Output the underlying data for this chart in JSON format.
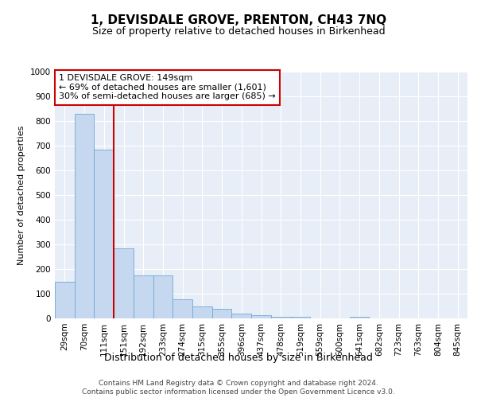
{
  "title": "1, DEVISDALE GROVE, PRENTON, CH43 7NQ",
  "subtitle": "Size of property relative to detached houses in Birkenhead",
  "xlabel": "Distribution of detached houses by size in Birkenhead",
  "ylabel": "Number of detached properties",
  "categories": [
    "29sqm",
    "70sqm",
    "111sqm",
    "151sqm",
    "192sqm",
    "233sqm",
    "274sqm",
    "315sqm",
    "355sqm",
    "396sqm",
    "437sqm",
    "478sqm",
    "519sqm",
    "559sqm",
    "600sqm",
    "641sqm",
    "682sqm",
    "723sqm",
    "763sqm",
    "804sqm",
    "845sqm"
  ],
  "values": [
    150,
    830,
    685,
    283,
    175,
    175,
    78,
    48,
    38,
    20,
    12,
    8,
    8,
    0,
    0,
    8,
    0,
    0,
    0,
    0,
    0
  ],
  "bar_color": "#c5d8ef",
  "bar_edge_color": "#6fa8d4",
  "vline_color": "#cc0000",
  "annotation_text": "1 DEVISDALE GROVE: 149sqm\n← 69% of detached houses are smaller (1,601)\n30% of semi-detached houses are larger (685) →",
  "annotation_box_color": "#ffffff",
  "annotation_box_edge_color": "#cc0000",
  "ylim": [
    0,
    1000
  ],
  "yticks": [
    0,
    100,
    200,
    300,
    400,
    500,
    600,
    700,
    800,
    900,
    1000
  ],
  "background_color": "#e8eef7",
  "grid_color": "#ffffff",
  "footer": "Contains HM Land Registry data © Crown copyright and database right 2024.\nContains public sector information licensed under the Open Government Licence v3.0.",
  "title_fontsize": 11,
  "subtitle_fontsize": 9,
  "ylabel_fontsize": 8,
  "xlabel_fontsize": 9,
  "tick_fontsize": 7.5,
  "annotation_fontsize": 8,
  "footer_fontsize": 6.5
}
